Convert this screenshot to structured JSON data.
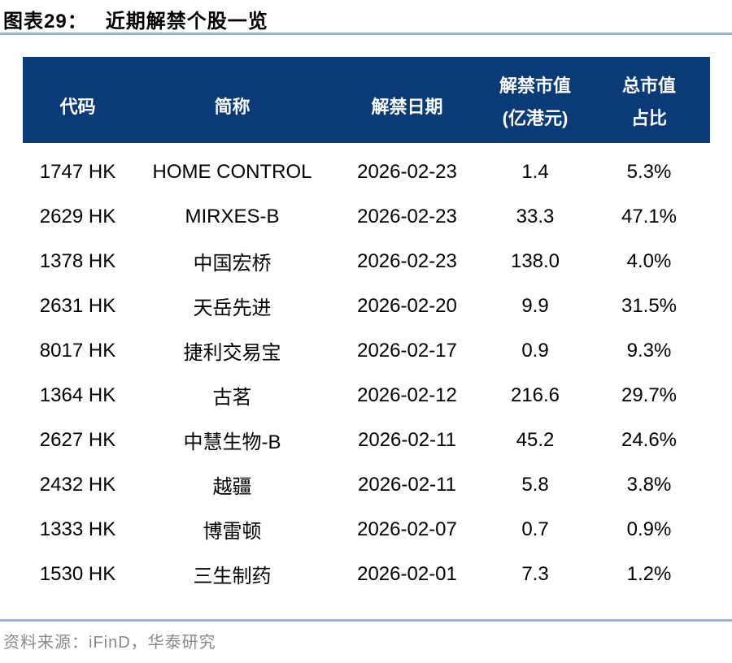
{
  "figure": {
    "title_label": "图表29：",
    "title_text": "近期解禁个股一览",
    "source": "资料来源：iFinD，华泰研究"
  },
  "table": {
    "columns": {
      "code": "代码",
      "name": "简称",
      "unlock_date": "解禁日期",
      "unlock_value_line1": "解禁市值",
      "unlock_value_line2": "(亿港元)",
      "total_mv_pct_line1": "总市值",
      "total_mv_pct_line2": "占比"
    },
    "rows": [
      {
        "code": "1747 HK",
        "name": "HOME CONTROL",
        "date": "2026-02-23",
        "value": "1.4",
        "pct": "5.3%"
      },
      {
        "code": "2629 HK",
        "name": "MIRXES-B",
        "date": "2026-02-23",
        "value": "33.3",
        "pct": "47.1%"
      },
      {
        "code": "1378 HK",
        "name": "中国宏桥",
        "date": "2026-02-23",
        "value": "138.0",
        "pct": "4.0%"
      },
      {
        "code": "2631 HK",
        "name": "天岳先进",
        "date": "2026-02-20",
        "value": "9.9",
        "pct": "31.5%"
      },
      {
        "code": "8017 HK",
        "name": "捷利交易宝",
        "date": "2026-02-17",
        "value": "0.9",
        "pct": "9.3%"
      },
      {
        "code": "1364 HK",
        "name": "古茗",
        "date": "2026-02-12",
        "value": "216.6",
        "pct": "29.7%"
      },
      {
        "code": "2627 HK",
        "name": "中慧生物-B",
        "date": "2026-02-11",
        "value": "45.2",
        "pct": "24.6%"
      },
      {
        "code": "2432 HK",
        "name": "越疆",
        "date": "2026-02-11",
        "value": "5.8",
        "pct": "3.8%"
      },
      {
        "code": "1333 HK",
        "name": "博雷顿",
        "date": "2026-02-07",
        "value": "0.7",
        "pct": "0.9%"
      },
      {
        "code": "1530 HK",
        "name": "三生制药",
        "date": "2026-02-01",
        "value": "7.3",
        "pct": "1.2%"
      }
    ]
  },
  "colors": {
    "header_bg": "#0a3b76",
    "rule_line": "#9fb3c8",
    "source_text": "#898989",
    "body_text": "#000000",
    "header_text": "#ffffff"
  }
}
